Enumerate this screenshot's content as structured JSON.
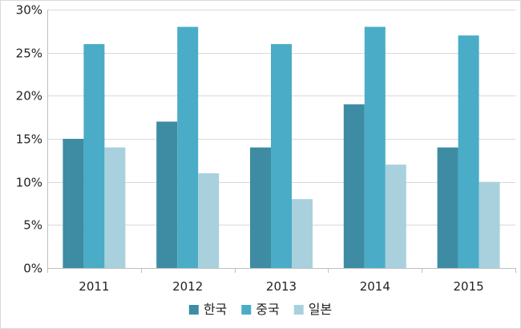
{
  "chart_data": {
    "type": "bar",
    "title": "",
    "xlabel": "",
    "ylabel": "",
    "categories": [
      "2011",
      "2012",
      "2013",
      "2014",
      "2015"
    ],
    "series": [
      {
        "name": "한국",
        "color": "#3d8ca3",
        "values": [
          15,
          17,
          14,
          19,
          14
        ]
      },
      {
        "name": "중국",
        "color": "#4aacc6",
        "values": [
          26,
          28,
          26,
          28,
          27
        ]
      },
      {
        "name": "일본",
        "color": "#a9d0dd",
        "values": [
          14,
          11,
          8,
          12,
          10
        ]
      }
    ],
    "ylim": [
      0,
      30
    ],
    "yticks": [
      0,
      5,
      10,
      15,
      20,
      25,
      30
    ],
    "ytick_labels": [
      "0%",
      "5%",
      "10%",
      "15%",
      "20%",
      "25%",
      "30%"
    ],
    "grid": true,
    "legend_position": "bottom-center",
    "gridline_color": "#d9d9d9",
    "axis_color": "#bfbfbf"
  }
}
